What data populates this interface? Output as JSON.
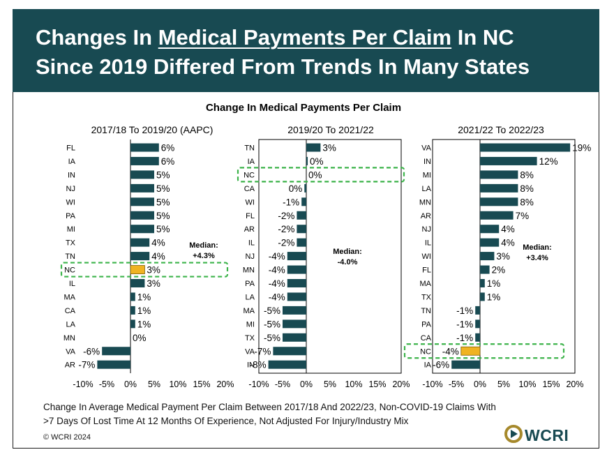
{
  "header": {
    "line1_pre": "Changes In ",
    "line1_underlined": "Medical Payments Per Claim",
    "line1_post": " In NC",
    "line2": "Since 2019 Differed From Trends In Many States"
  },
  "colors": {
    "header_bg": "#184a52",
    "bar": "#184a52",
    "highlight_bar": "#f0b323",
    "highlight_box": "#3cb34a"
  },
  "highlight_state": "NC",
  "chart_data": [
    {
      "type": "bar",
      "orientation": "horizontal",
      "main_title": "Change In Medical Payments Per Claim",
      "title": "2017/18 To 2019/20 (AAPC)",
      "categories": [
        "FL",
        "IA",
        "IN",
        "NJ",
        "WI",
        "PA",
        "MI",
        "TX",
        "TN",
        "NC",
        "IL",
        "MA",
        "CA",
        "LA",
        "MN",
        "VA",
        "AR"
      ],
      "values": [
        6,
        6,
        5,
        5,
        5,
        5,
        5,
        4,
        4,
        3,
        3,
        1,
        1,
        1,
        0,
        -6,
        -7
      ],
      "labels": [
        "6%",
        "6%",
        "5%",
        "5%",
        "5%",
        "5%",
        "5%",
        "4%",
        "4%",
        "3%",
        "3%",
        "1%",
        "1%",
        "1%",
        "0%",
        "-6%",
        "-7%"
      ],
      "xlim": [
        -10,
        20
      ],
      "xticks": [
        "-10%",
        "-5%",
        "0%",
        "5%",
        "10%",
        "15%",
        "20%"
      ],
      "annotation": [
        "Median:",
        "+4.3%"
      ]
    },
    {
      "type": "bar",
      "orientation": "horizontal",
      "title": "2019/20 To 2021/22",
      "categories": [
        "TN",
        "IA",
        "NC",
        "CA",
        "WI",
        "FL",
        "AR",
        "IL",
        "NJ",
        "MN",
        "PA",
        "LA",
        "MA",
        "MI",
        "TX",
        "VA",
        "IN"
      ],
      "values": [
        3,
        0.3,
        0,
        -0.4,
        -1,
        -2,
        -2,
        -2,
        -4,
        -4,
        -4,
        -4,
        -5,
        -5,
        -5,
        -7,
        -8
      ],
      "labels": [
        "3%",
        "0%",
        "0%",
        "0%",
        "-1%",
        "-2%",
        "-2%",
        "-2%",
        "-4%",
        "-4%",
        "-4%",
        "-4%",
        "-5%",
        "-5%",
        "-5%",
        "-7%",
        "-8%"
      ],
      "xlim": [
        -10,
        20
      ],
      "xticks": [
        "-10%",
        "-5%",
        "0%",
        "5%",
        "10%",
        "15%",
        "20%"
      ],
      "annotation": [
        "Median:",
        "-4.0%"
      ]
    },
    {
      "type": "bar",
      "orientation": "horizontal",
      "title": "2021/22 To 2022/23",
      "categories": [
        "VA",
        "IN",
        "MI",
        "LA",
        "MN",
        "AR",
        "NJ",
        "IL",
        "WI",
        "FL",
        "MA",
        "TX",
        "TN",
        "PA",
        "CA",
        "NC",
        "IA"
      ],
      "values": [
        19,
        12,
        8,
        8,
        8,
        7,
        4,
        4,
        3,
        2,
        1,
        1,
        -1,
        -1,
        -1,
        -4,
        -6
      ],
      "labels": [
        "19%",
        "12%",
        "8%",
        "8%",
        "8%",
        "7%",
        "4%",
        "4%",
        "3%",
        "2%",
        "1%",
        "1%",
        "-1%",
        "-1%",
        "-1%",
        "-4%",
        "-6%"
      ],
      "xlim": [
        -10,
        20
      ],
      "xticks": [
        "-10%",
        "-5%",
        "0%",
        "5%",
        "10%",
        "15%",
        "20%"
      ],
      "annotation": [
        "Median:",
        "+3.4%"
      ]
    }
  ],
  "caption": {
    "line1": "Change In Average Medical Payment Per Claim Between 2017/18 And 2022/23, Non-COVID-19 Claims With",
    "line2": ">7 Days Of Lost Time At 12 Months Of Experience, Not Adjusted For Injury/Industry Mix"
  },
  "copyright": "© WCRI 2024",
  "logo_text": "WCRI"
}
